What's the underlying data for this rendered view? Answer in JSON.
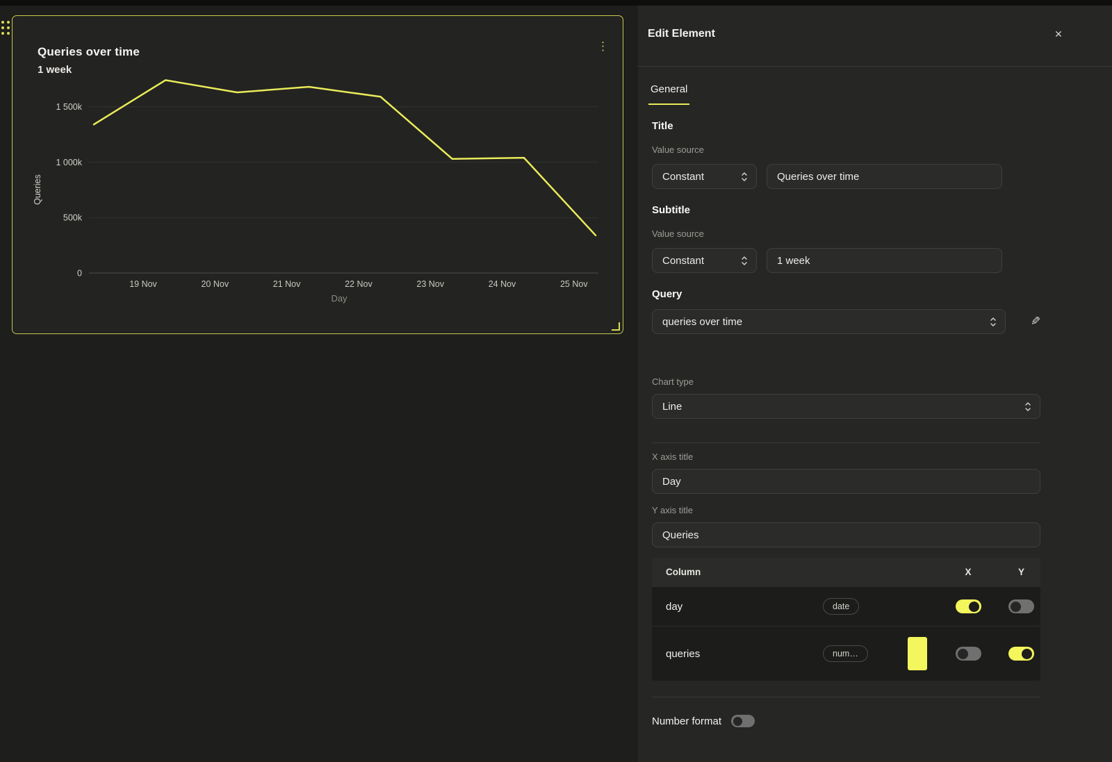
{
  "canvas": {
    "card": {
      "title": "Queries over time",
      "subtitle": "1 week",
      "kebab_menu_icon": "⋮"
    }
  },
  "chart_data": {
    "type": "line",
    "title": "Queries over time",
    "subtitle": "1 week",
    "xlabel": "Day",
    "ylabel": "Queries",
    "x_tick_labels": [
      "19 Nov",
      "20 Nov",
      "21 Nov",
      "22 Nov",
      "23 Nov",
      "24 Nov",
      "25 Nov"
    ],
    "y_ticks": [
      {
        "value": 0,
        "label": "0"
      },
      {
        "value": 500000,
        "label": "500k"
      },
      {
        "value": 1000000,
        "label": "1 000k"
      },
      {
        "value": 1500000,
        "label": "1 500k"
      }
    ],
    "ylim": [
      0,
      1800000
    ],
    "grid": true,
    "legend": false,
    "series": [
      {
        "name": "queries",
        "color": "#e9eb5a",
        "values": [
          1340000,
          1740000,
          1630000,
          1680000,
          1590000,
          1030000,
          1040000,
          340000
        ]
      }
    ]
  },
  "panel": {
    "title": "Edit Element",
    "close_icon": "✕",
    "tabs": [
      {
        "label": "General",
        "active": true
      }
    ],
    "title_section": {
      "heading": "Title",
      "value_source_label": "Value source",
      "source": "Constant",
      "value": "Queries over time"
    },
    "subtitle_section": {
      "heading": "Subtitle",
      "value_source_label": "Value source",
      "source": "Constant",
      "value": "1 week"
    },
    "query_section": {
      "heading": "Query",
      "value": "queries over time",
      "edit_icon": "✎"
    },
    "chart_type": {
      "label": "Chart type",
      "value": "Line"
    },
    "x_axis": {
      "label": "X axis title",
      "value": "Day"
    },
    "y_axis": {
      "label": "Y axis title",
      "value": "Queries"
    },
    "columns_table": {
      "headers": {
        "column": "Column",
        "x": "X",
        "y": "Y"
      },
      "rows": [
        {
          "name": "day",
          "type_badge": "date",
          "swatch": null,
          "x_on": true,
          "y_on": false
        },
        {
          "name": "queries",
          "type_badge": "num…",
          "swatch": "#f3f65c",
          "x_on": false,
          "y_on": true
        }
      ]
    },
    "number_format": {
      "label": "Number format",
      "enabled": false
    }
  },
  "colors": {
    "accent": "#e9eb5a",
    "toggle_on": "#f3f65c",
    "toggle_off": "#707070",
    "card_border": "#c6ca4f"
  }
}
